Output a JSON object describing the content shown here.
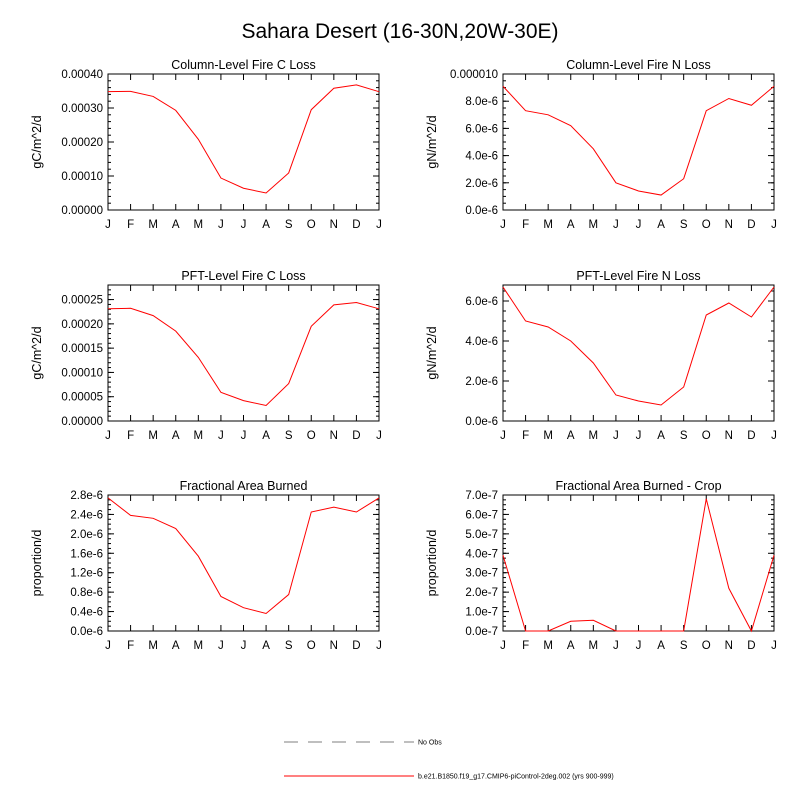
{
  "figure": {
    "title": "Sahara Desert (16-30N,20W-30E)"
  },
  "colors": {
    "model_line": "#ff0000",
    "obs_line": "#999999",
    "axis": "#000000"
  },
  "legend": {
    "obs_label": "No Obs",
    "model_label": "b.e21.B1850.f19_g17.CMIP6-piControl-2deg.002 (yrs 900-999)"
  },
  "chart_data": [
    {
      "type": "line",
      "title": "Column-Level Fire C Loss",
      "ylabel": "gC/m^2/d",
      "categories": [
        "J",
        "F",
        "M",
        "A",
        "M",
        "J",
        "J",
        "A",
        "S",
        "O",
        "N",
        "D",
        "J"
      ],
      "ylim": [
        0,
        0.0004
      ],
      "yticks": [
        0,
        0.0001,
        0.0002,
        0.0003,
        0.0004
      ],
      "yticklabels": [
        "0.00000",
        "0.00010",
        "0.00020",
        "0.00030",
        "0.00040"
      ],
      "minor_per_major": 5,
      "series": [
        {
          "name": "b.e21.B1850.f19_g17.CMIP6-piControl-2deg.002 (yrs 900-999)",
          "values": [
            0.000348,
            0.000349,
            0.000334,
            0.000293,
            0.000208,
            9.4e-05,
            6.4e-05,
            5e-05,
            0.000109,
            0.000295,
            0.000358,
            0.000368,
            0.000348
          ]
        }
      ]
    },
    {
      "type": "line",
      "title": "Column-Level Fire N Loss",
      "ylabel": "gN/m^2/d",
      "categories": [
        "J",
        "F",
        "M",
        "A",
        "M",
        "J",
        "J",
        "A",
        "S",
        "O",
        "N",
        "D",
        "J"
      ],
      "ylim": [
        0,
        1e-05
      ],
      "yticks": [
        0,
        2e-06,
        4e-06,
        6e-06,
        8e-06,
        1e-05
      ],
      "yticklabels": [
        "0.0e-6",
        "2.0e-6",
        "4.0e-6",
        "6.0e-6",
        "8.0e-6",
        "0.000010"
      ],
      "minor_per_major": 4,
      "series": [
        {
          "name": "b.e21.B1850.f19_g17.CMIP6-piControl-2deg.002 (yrs 900-999)",
          "values": [
            9.1e-06,
            7.3e-06,
            7e-06,
            6.2e-06,
            4.5e-06,
            2e-06,
            1.4e-06,
            1.1e-06,
            2.3e-06,
            7.3e-06,
            8.2e-06,
            7.7e-06,
            9.1e-06
          ]
        }
      ]
    },
    {
      "type": "line",
      "title": "PFT-Level Fire C Loss",
      "ylabel": "gC/m^2/d",
      "categories": [
        "J",
        "F",
        "M",
        "A",
        "M",
        "J",
        "J",
        "A",
        "S",
        "O",
        "N",
        "D",
        "J"
      ],
      "ylim": [
        0,
        0.00028
      ],
      "yticks": [
        0,
        5e-05,
        0.0001,
        0.00015,
        0.0002,
        0.00025
      ],
      "yticklabels": [
        "0.00000",
        "0.00005",
        "0.00010",
        "0.00015",
        "0.00020",
        "0.00025"
      ],
      "minor_per_major": 5,
      "series": [
        {
          "name": "b.e21.B1850.f19_g17.CMIP6-piControl-2deg.002 (yrs 900-999)",
          "values": [
            0.000231,
            0.000232,
            0.000217,
            0.000185,
            0.000131,
            5.9e-05,
            4.2e-05,
            3.2e-05,
            7.7e-05,
            0.000195,
            0.000239,
            0.000244,
            0.000231
          ]
        }
      ]
    },
    {
      "type": "line",
      "title": "PFT-Level Fire N Loss",
      "ylabel": "gN/m^2/d",
      "categories": [
        "J",
        "F",
        "M",
        "A",
        "M",
        "J",
        "J",
        "A",
        "S",
        "O",
        "N",
        "D",
        "J"
      ],
      "ylim": [
        0,
        6.8e-06
      ],
      "yticks": [
        0,
        2e-06,
        4e-06,
        6e-06
      ],
      "yticklabels": [
        "0.0e-6",
        "2.0e-6",
        "4.0e-6",
        "6.0e-6"
      ],
      "minor_per_major": 4,
      "series": [
        {
          "name": "b.e21.B1850.f19_g17.CMIP6-piControl-2deg.002 (yrs 900-999)",
          "values": [
            6.7e-06,
            5e-06,
            4.7e-06,
            4e-06,
            2.9e-06,
            1.3e-06,
            1e-06,
            8e-07,
            1.7e-06,
            5.3e-06,
            5.9e-06,
            5.2e-06,
            6.7e-06
          ]
        }
      ]
    },
    {
      "type": "line",
      "title": "Fractional Area Burned",
      "ylabel": "proportion/d",
      "categories": [
        "J",
        "F",
        "M",
        "A",
        "M",
        "J",
        "J",
        "A",
        "S",
        "O",
        "N",
        "D",
        "J"
      ],
      "ylim": [
        0,
        2.8e-06
      ],
      "yticks": [
        0,
        4e-07,
        8e-07,
        1.2e-06,
        1.6e-06,
        2e-06,
        2.4e-06,
        2.8e-06
      ],
      "yticklabels": [
        "0.0e-6",
        "0.4e-6",
        "0.8e-6",
        "1.2e-6",
        "1.6e-6",
        "2.0e-6",
        "2.4e-6",
        "2.8e-6"
      ],
      "minor_per_major": 4,
      "series": [
        {
          "name": "b.e21.B1850.f19_g17.CMIP6-piControl-2deg.002 (yrs 900-999)",
          "values": [
            2.74e-06,
            2.38e-06,
            2.32e-06,
            2.11e-06,
            1.54e-06,
            7.1e-07,
            4.8e-07,
            3.6e-07,
            7.5e-07,
            2.45e-06,
            2.55e-06,
            2.45e-06,
            2.74e-06
          ]
        }
      ]
    },
    {
      "type": "line",
      "title": "Fractional Area Burned - Crop",
      "ylabel": "proportion/d",
      "categories": [
        "J",
        "F",
        "M",
        "A",
        "M",
        "J",
        "J",
        "A",
        "S",
        "O",
        "N",
        "D",
        "J"
      ],
      "ylim": [
        0,
        7e-07
      ],
      "yticks": [
        0,
        1e-07,
        2e-07,
        3e-07,
        4e-07,
        5e-07,
        6e-07,
        7e-07
      ],
      "yticklabels": [
        "0.0e-7",
        "1.0e-7",
        "2.0e-7",
        "3.0e-7",
        "4.0e-7",
        "5.0e-7",
        "6.0e-7",
        "7.0e-7"
      ],
      "minor_per_major": 4,
      "series": [
        {
          "name": "b.e21.B1850.f19_g17.CMIP6-piControl-2deg.002 (yrs 900-999)",
          "values": [
            3.9e-07,
            0.0,
            0.0,
            5e-08,
            5.5e-08,
            0.0,
            0.0,
            0.0,
            0.0,
            6.8e-07,
            2.2e-07,
            0.0,
            3.9e-07
          ]
        }
      ]
    }
  ]
}
